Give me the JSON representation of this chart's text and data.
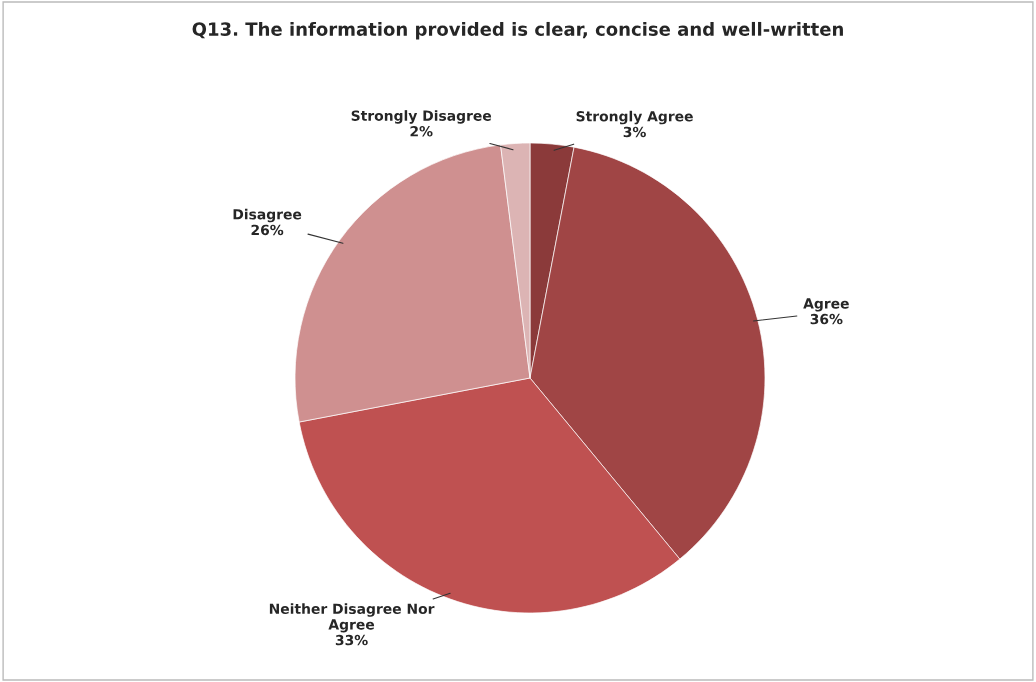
{
  "chart_data": {
    "type": "pie",
    "title": "Q13. The information provided is clear, concise and well-written",
    "categories": [
      "Strongly Agree",
      "Agree",
      "Neither Disagree Nor\nAgree",
      "Disagree",
      "Strongly Disagree"
    ],
    "values": [
      3,
      36,
      33,
      26,
      2
    ],
    "value_labels": [
      "3%",
      "36%",
      "33%",
      "26%",
      "2%"
    ],
    "colors": [
      "#8b3a3a",
      "#a04545",
      "#bf5151",
      "#cf9090",
      "#dcb4b4"
    ]
  }
}
